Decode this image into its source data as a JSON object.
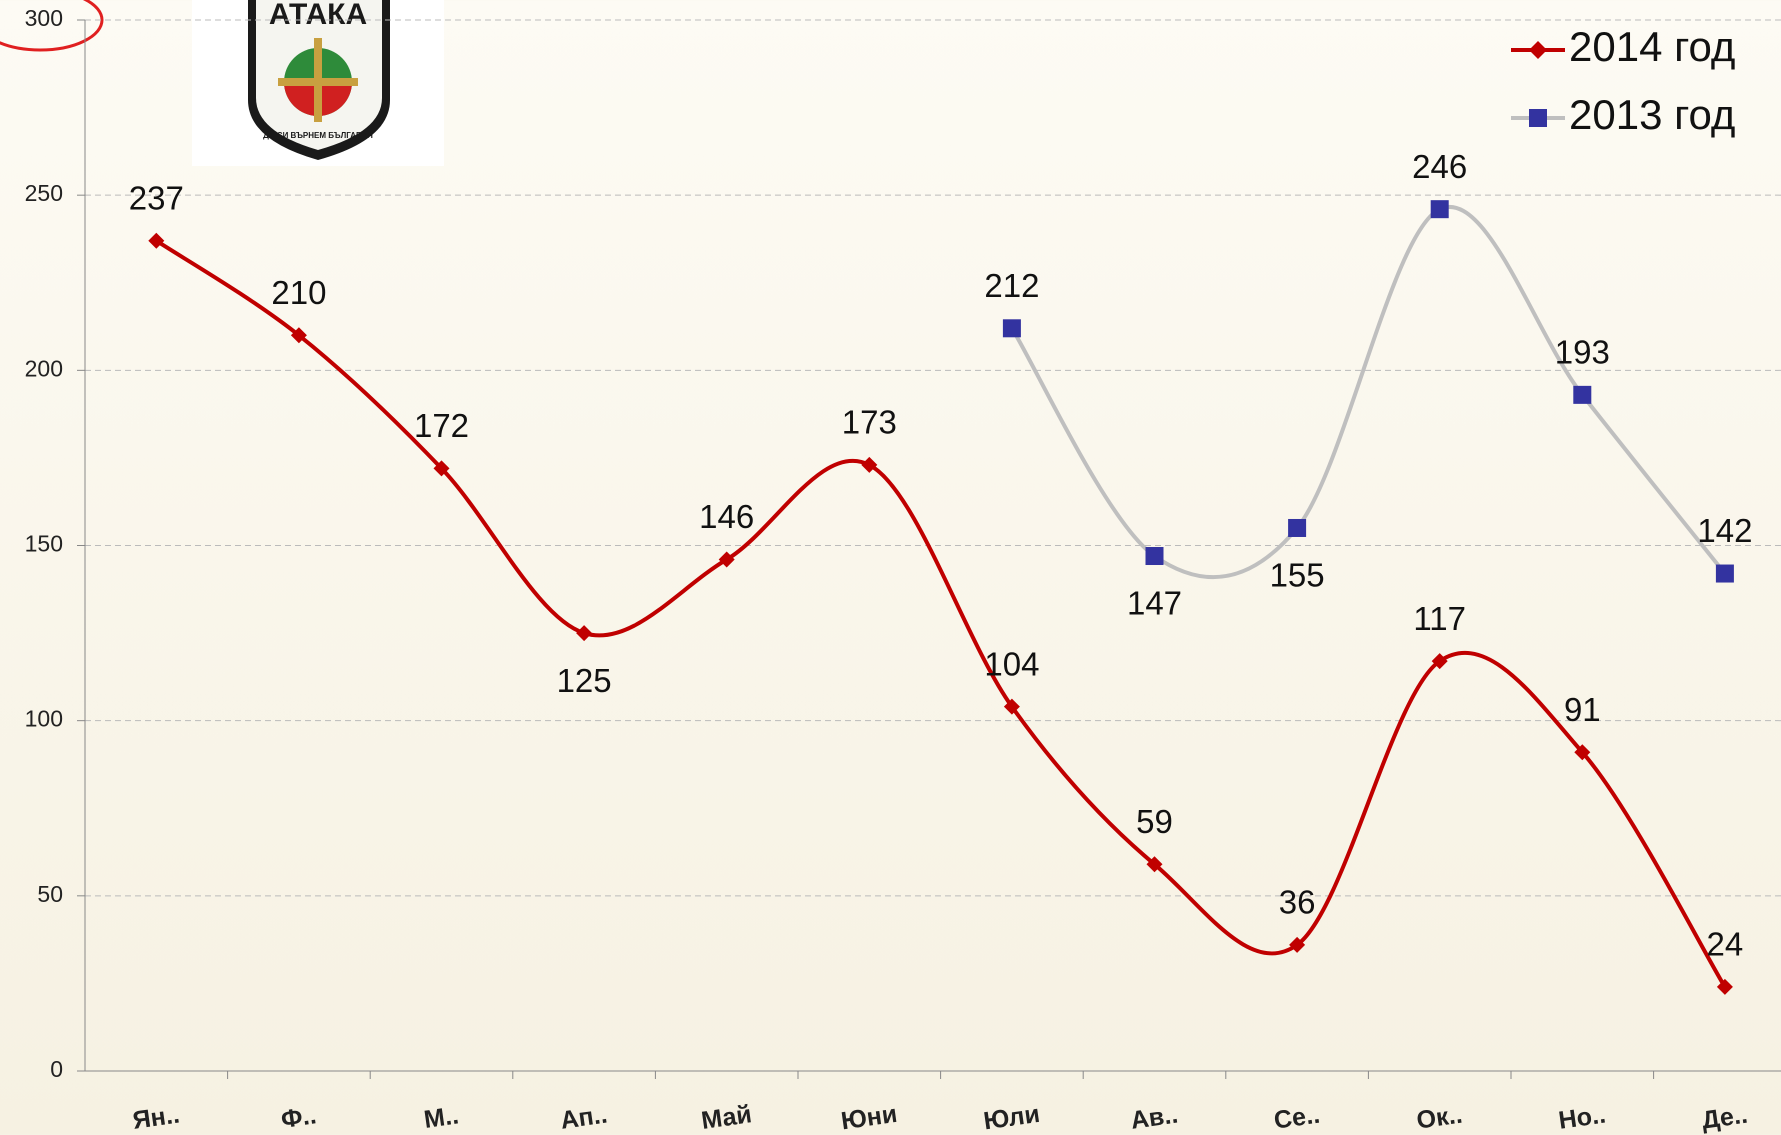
{
  "chart_data": {
    "type": "line",
    "logo": {
      "title": "АТАКА",
      "motto": "ДА СИ ВЪРНЕМ БЪЛГАРИЯ"
    },
    "categories": [
      "Ян..",
      "Ф..",
      "М..",
      "Ап..",
      "Май",
      "Юни",
      "Юли",
      "Ав..",
      "Се..",
      "Ок..",
      "Но..",
      "Де.."
    ],
    "series": [
      {
        "name": "2014 год",
        "color": "#c00000",
        "marker": "diamond",
        "values": [
          237,
          210,
          172,
          125,
          146,
          173,
          104,
          59,
          36,
          117,
          91,
          24
        ]
      },
      {
        "name": "2013 год",
        "color": "#bfbfbf",
        "marker_color": "#3333a0",
        "marker": "square",
        "values": [
          null,
          null,
          null,
          null,
          null,
          null,
          212,
          147,
          155,
          246,
          193,
          142
        ]
      }
    ],
    "ylim": [
      0,
      300
    ],
    "yticks": [
      0,
      50,
      100,
      150,
      200,
      250,
      300
    ],
    "grid": true,
    "legend": "top-right"
  }
}
